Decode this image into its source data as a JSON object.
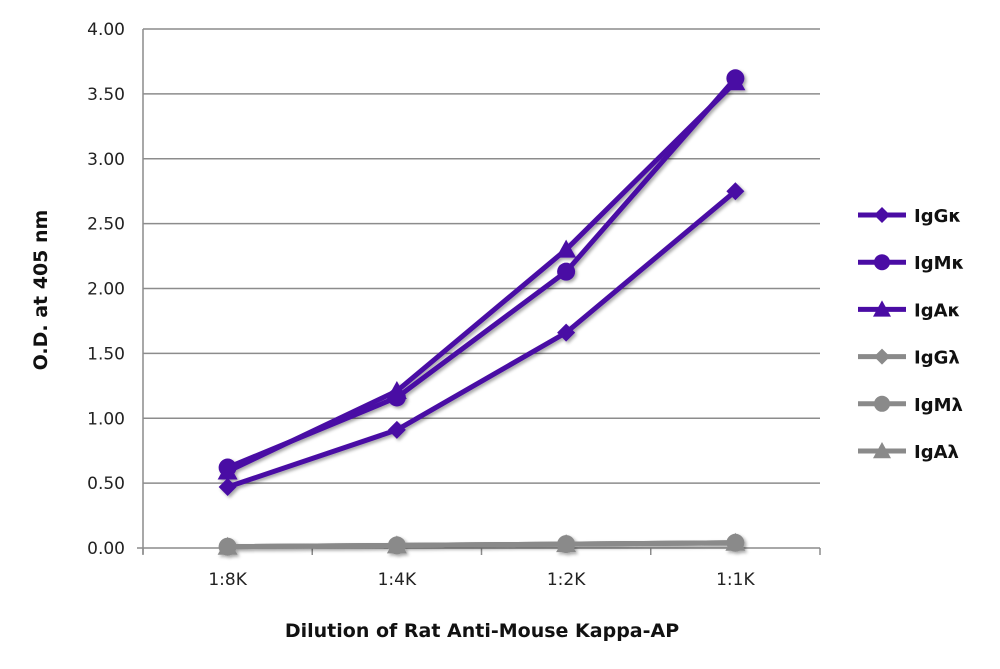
{
  "chart_data": {
    "type": "line",
    "title": "",
    "xlabel": "Dilution of Rat Anti-Mouse Kappa-AP",
    "ylabel": "O.D. at 405 nm",
    "categories": [
      "1:8K",
      "1:4K",
      "1:2K",
      "1:1K"
    ],
    "ylim": [
      0,
      4
    ],
    "yticks": [
      "0.00",
      "0.50",
      "1.00",
      "1.50",
      "2.00",
      "2.50",
      "3.00",
      "3.50",
      "4.00"
    ],
    "grid": true,
    "legend_position": "right",
    "series": [
      {
        "name": "IgGκ",
        "marker": "diamond",
        "color": "#4a0ca4",
        "values": [
          0.47,
          0.91,
          1.66,
          2.75
        ]
      },
      {
        "name": "IgMκ",
        "marker": "circle",
        "color": "#4a0ca4",
        "values": [
          0.62,
          1.16,
          2.13,
          3.62
        ]
      },
      {
        "name": "IgAκ",
        "marker": "triangle",
        "color": "#4a0ca4",
        "values": [
          0.59,
          1.21,
          2.3,
          3.59
        ]
      },
      {
        "name": "IgGλ",
        "marker": "diamond",
        "color": "#8a8a8a",
        "values": [
          0.01,
          0.02,
          0.03,
          0.04
        ]
      },
      {
        "name": "IgMλ",
        "marker": "circle",
        "color": "#8a8a8a",
        "values": [
          0.01,
          0.02,
          0.03,
          0.04
        ]
      },
      {
        "name": "IgAλ",
        "marker": "triangle",
        "color": "#8a8a8a",
        "values": [
          0.01,
          0.02,
          0.03,
          0.04
        ]
      }
    ]
  }
}
